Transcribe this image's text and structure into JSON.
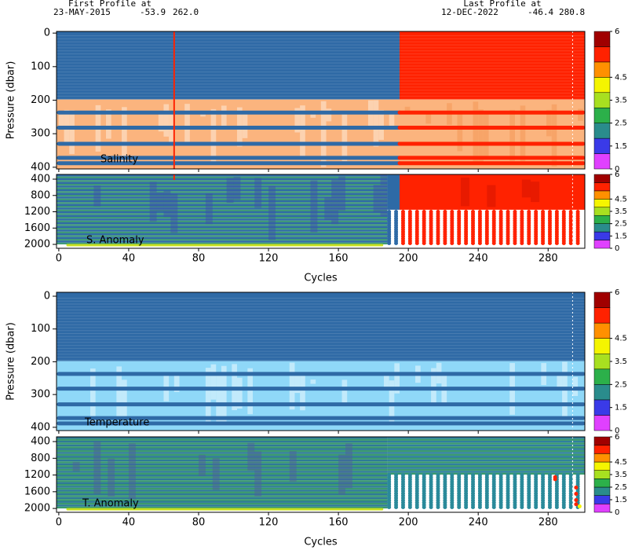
{
  "header": {
    "first_label": "First Profile at",
    "first_date": "23-MAY-2015",
    "first_lat": "-53.9",
    "first_lon": "262.0",
    "last_label": "Last Profile at",
    "last_date": "12-DEC-2022",
    "last_lat": "-46.4",
    "last_lon": "280.8"
  },
  "chart_data": [
    {
      "type": "heatmap",
      "label": "Salinity",
      "ylabel": "Pressure (dbar)",
      "xlim": [
        -1.3,
        301
      ],
      "xticks": [
        0,
        40,
        80,
        120,
        160,
        200,
        240,
        280
      ],
      "ylim": [
        -5,
        405
      ],
      "yticks": [
        0,
        100,
        200,
        300,
        400
      ],
      "colorbar": {
        "ticks": [
          0,
          1.5,
          2.5,
          3.5,
          4.5,
          6
        ],
        "colors": [
          "#e040ff",
          "#3a3ae8",
          "#2a8c8c",
          "#2cb04a",
          "#a8e020",
          "#f5f500",
          "#ff9000",
          "#ff2200",
          "#a00000"
        ]
      }
    },
    {
      "type": "heatmap",
      "label": "S. Anomaly",
      "xlabel": "Cycles",
      "xlim": [
        -1.3,
        301
      ],
      "xticks": [
        0,
        40,
        80,
        120,
        160,
        200,
        240,
        280
      ],
      "ylim": [
        284,
        2096
      ],
      "yticks": [
        400,
        800,
        1200,
        1600,
        2000
      ],
      "colorbar": {
        "ticks": [
          0,
          1.5,
          2.5,
          3.5,
          4.5,
          6
        ],
        "colors": [
          "#e040ff",
          "#3a3ae8",
          "#2a8c8c",
          "#2cb04a",
          "#a8e020",
          "#f5f500",
          "#ff9000",
          "#ff2200",
          "#a00000"
        ]
      }
    },
    {
      "type": "heatmap",
      "label": "Temperature",
      "ylabel": "Pressure (dbar)",
      "xlim": [
        -1.3,
        301
      ],
      "xticks": [
        0,
        40,
        80,
        120,
        160,
        200,
        240,
        280
      ],
      "ylim": [
        -12,
        410
      ],
      "yticks": [
        0,
        100,
        200,
        300,
        400
      ],
      "colorbar": {
        "ticks": [
          0,
          1.5,
          2.5,
          3.5,
          4.5,
          6
        ],
        "colors": [
          "#e040ff",
          "#3a3ae8",
          "#2a8c8c",
          "#2cb04a",
          "#a8e020",
          "#f5f500",
          "#ff9000",
          "#ff2200",
          "#a00000"
        ]
      }
    },
    {
      "type": "heatmap",
      "label": "T. Anomaly",
      "xlabel": "Cycles",
      "xlim": [
        -1.3,
        301
      ],
      "xticks": [
        0,
        40,
        80,
        120,
        160,
        200,
        240,
        280
      ],
      "ylim": [
        287,
        2092
      ],
      "yticks": [
        400,
        800,
        1200,
        1600,
        2000
      ],
      "colorbar": {
        "ticks": [
          0,
          1.5,
          2.5,
          3.5,
          4.5,
          6
        ],
        "colors": [
          "#e040ff",
          "#3a3ae8",
          "#2a8c8c",
          "#2cb04a",
          "#a8e020",
          "#f5f500",
          "#ff9000",
          "#ff2200",
          "#a00000"
        ]
      }
    }
  ]
}
